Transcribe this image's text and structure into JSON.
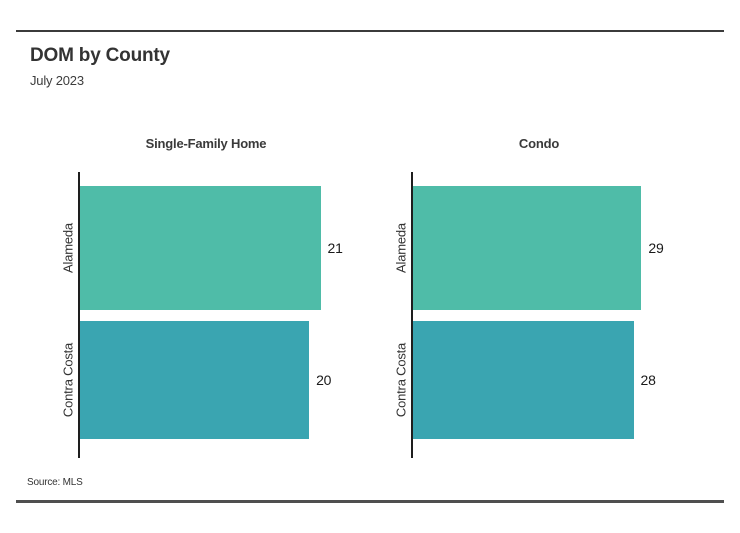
{
  "header": {
    "title": "DOM by County",
    "subtitle": "July 2023"
  },
  "footer": {
    "source": "Source: MLS"
  },
  "palette": {
    "bar_green": "#4fbca8",
    "bar_teal": "#3aa5b1",
    "rule_top": "#3b3b3b",
    "rule_bottom": "#4f4f4f",
    "axis_line": "#1e1e1e",
    "text_dark": "#333333"
  },
  "chart_data": [
    {
      "type": "bar",
      "orientation": "horizontal",
      "title": "Single-Family Home",
      "categories": [
        "Alameda",
        "Contra Costa"
      ],
      "values": [
        21,
        20
      ],
      "value_labels": [
        "21",
        "20"
      ],
      "bar_colors": [
        "#4fbca8",
        "#3aa5b1"
      ],
      "xlim": [
        0,
        22
      ],
      "grid": false,
      "legend": false
    },
    {
      "type": "bar",
      "orientation": "horizontal",
      "title": "Condo",
      "categories": [
        "Alameda",
        "Contra Costa"
      ],
      "values": [
        29,
        28
      ],
      "value_labels": [
        "29",
        "28"
      ],
      "bar_colors": [
        "#4fbca8",
        "#3aa5b1"
      ],
      "xlim": [
        0,
        32
      ],
      "grid": false,
      "legend": false
    }
  ]
}
